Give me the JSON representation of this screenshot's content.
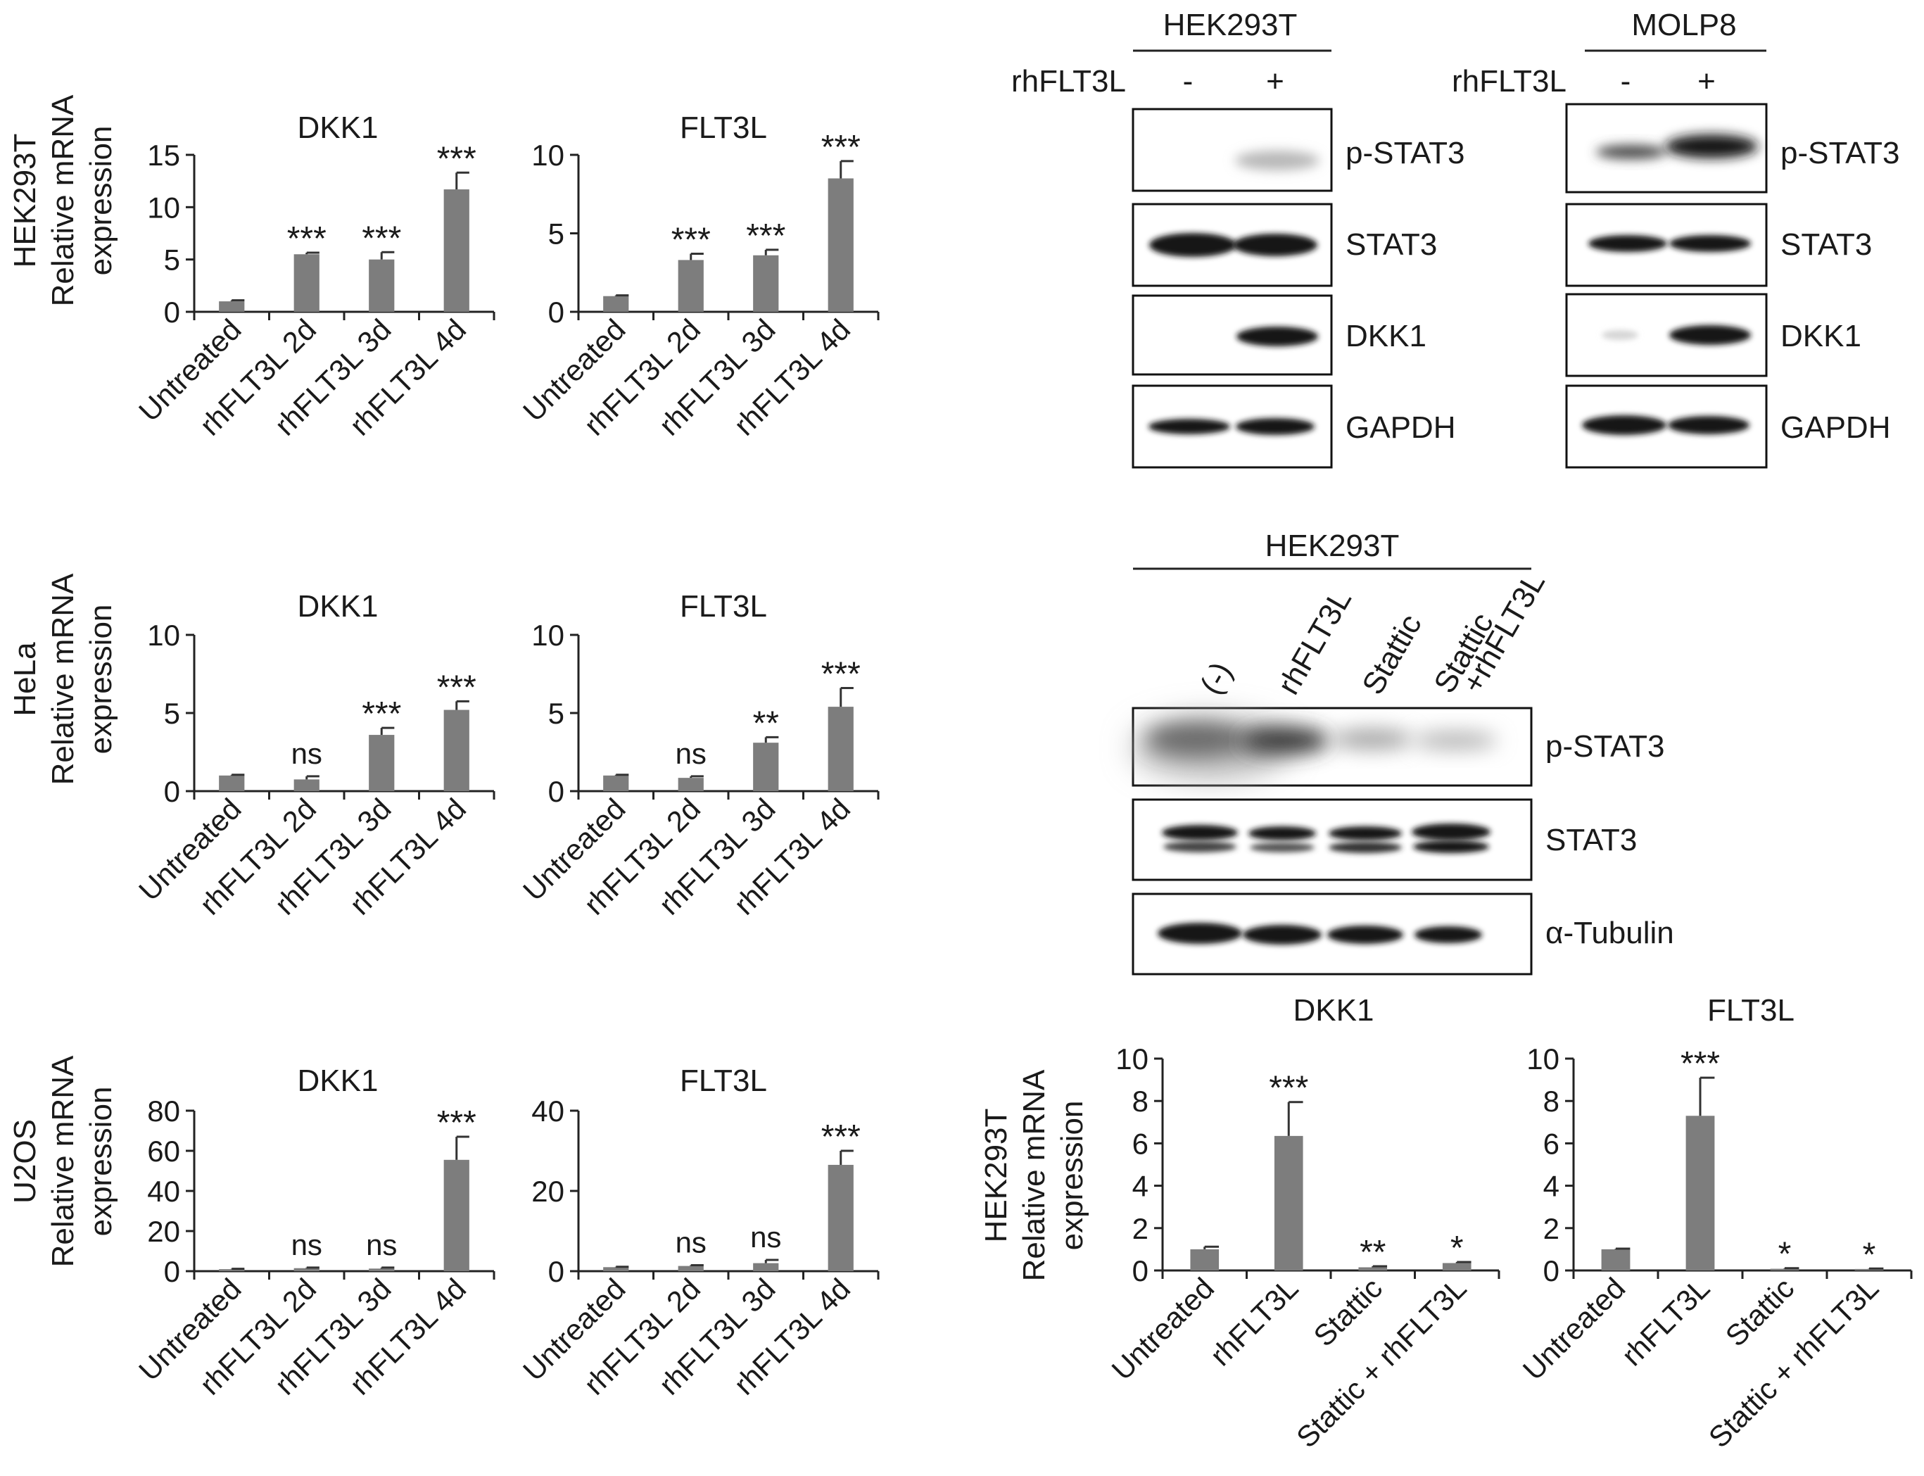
{
  "chart_data": [
    {
      "id": "hek-dkk1",
      "type": "bar",
      "title": "DKK1",
      "ylabel_lines": [
        "HEK293T",
        "Relative mRNA",
        "expression"
      ],
      "categories": [
        "Untreated",
        "rhFLT3L 2d",
        "rhFLT3L 3d",
        "rhFLT3L 4d"
      ],
      "values": [
        1.0,
        5.5,
        5.0,
        11.7
      ],
      "errors": [
        0.1,
        0.15,
        0.7,
        1.6
      ],
      "sig": [
        "",
        "***",
        "***",
        "***"
      ],
      "ylim": [
        0,
        15
      ],
      "yticks": [
        0,
        5,
        10,
        15
      ]
    },
    {
      "id": "hek-flt3l",
      "type": "bar",
      "title": "FLT3L",
      "ylabel_lines": [],
      "categories": [
        "Untreated",
        "rhFLT3L 2d",
        "rhFLT3L 3d",
        "rhFLT3L 4d"
      ],
      "values": [
        1.0,
        3.3,
        3.6,
        8.5
      ],
      "errors": [
        0.05,
        0.4,
        0.35,
        1.1
      ],
      "sig": [
        "",
        "***",
        "***",
        "***"
      ],
      "ylim": [
        0,
        10
      ],
      "yticks": [
        0,
        5,
        10
      ]
    },
    {
      "id": "hela-dkk1",
      "type": "bar",
      "title": "DKK1",
      "ylabel_lines": [
        "HeLa",
        "Relative mRNA",
        "expression"
      ],
      "categories": [
        "Untreated",
        "rhFLT3L 2d",
        "rhFLT3L 3d",
        "rhFLT3L 4d"
      ],
      "values": [
        1.0,
        0.75,
        3.6,
        5.2
      ],
      "errors": [
        0.05,
        0.2,
        0.45,
        0.55
      ],
      "sig": [
        "",
        "ns",
        "***",
        "***"
      ],
      "ylim": [
        0,
        10
      ],
      "yticks": [
        0,
        5,
        10
      ]
    },
    {
      "id": "hela-flt3l",
      "type": "bar",
      "title": "FLT3L",
      "ylabel_lines": [],
      "categories": [
        "Untreated",
        "rhFLT3L 2d",
        "rhFLT3L 3d",
        "rhFLT3L 4d"
      ],
      "values": [
        1.0,
        0.85,
        3.1,
        5.4
      ],
      "errors": [
        0.05,
        0.1,
        0.35,
        1.2
      ],
      "sig": [
        "",
        "ns",
        "**",
        "***"
      ],
      "ylim": [
        0,
        10
      ],
      "yticks": [
        0,
        5,
        10
      ]
    },
    {
      "id": "u2os-dkk1",
      "type": "bar",
      "title": "DKK1",
      "ylabel_lines": [
        "U2OS",
        "Relative mRNA",
        "expression"
      ],
      "categories": [
        "Untreated",
        "rhFLT3L 2d",
        "rhFLT3L 3d",
        "rhFLT3L 4d"
      ],
      "values": [
        1.0,
        1.5,
        1.3,
        55.5
      ],
      "errors": [
        0.2,
        0.3,
        0.5,
        11.5
      ],
      "sig": [
        "",
        "ns",
        "ns",
        "***"
      ],
      "ylim": [
        0,
        80
      ],
      "yticks": [
        0,
        20,
        40,
        60,
        80
      ]
    },
    {
      "id": "u2os-flt3l",
      "type": "bar",
      "title": "FLT3L",
      "ylabel_lines": [],
      "categories": [
        "Untreated",
        "rhFLT3L 2d",
        "rhFLT3L 3d",
        "rhFLT3L 4d"
      ],
      "values": [
        1.0,
        1.3,
        2.0,
        26.5
      ],
      "errors": [
        0.1,
        0.2,
        0.8,
        3.5
      ],
      "sig": [
        "",
        "ns",
        "ns",
        "***"
      ],
      "ylim": [
        0,
        40
      ],
      "yticks": [
        0,
        20,
        40
      ]
    },
    {
      "id": "stattic-dkk1",
      "type": "bar",
      "title": "DKK1",
      "ylabel_lines": [
        "HEK293T",
        "Relative mRNA",
        "expression"
      ],
      "categories": [
        "Untreated",
        "rhFLT3L",
        "Stattic",
        "Stattic + rhFLT3L"
      ],
      "values": [
        1.0,
        6.35,
        0.15,
        0.35
      ],
      "errors": [
        0.12,
        1.6,
        0.05,
        0.05
      ],
      "sig": [
        "",
        "***",
        "**",
        "*"
      ],
      "ylim": [
        0,
        10
      ],
      "yticks": [
        0,
        2,
        4,
        6,
        8,
        10
      ]
    },
    {
      "id": "stattic-flt3l",
      "type": "bar",
      "title": "FLT3L",
      "ylabel_lines": [],
      "categories": [
        "Untreated",
        "rhFLT3L",
        "Stattic",
        "Stattic + rhFLT3L"
      ],
      "values": [
        1.0,
        7.3,
        0.08,
        0.07
      ],
      "errors": [
        0.03,
        1.8,
        0.03,
        0.02
      ],
      "sig": [
        "",
        "***",
        "*",
        "*"
      ],
      "ylim": [
        0,
        10
      ],
      "yticks": [
        0,
        2,
        4,
        6,
        8,
        10
      ]
    }
  ],
  "blots": {
    "hek293t": {
      "header": "HEK293T",
      "treatment_label": "rhFLT3L",
      "lanes": [
        "-",
        "+"
      ],
      "rows": [
        "p-STAT3",
        "STAT3",
        "DKK1",
        "GAPDH"
      ]
    },
    "molp8": {
      "header": "MOLP8",
      "treatment_label": "rhFLT3L",
      "lanes": [
        "-",
        "+"
      ],
      "rows": [
        "p-STAT3",
        "STAT3",
        "DKK1",
        "GAPDH"
      ]
    },
    "stattic": {
      "header": "HEK293T",
      "lanes": [
        "(-)",
        "rhFLT3L",
        "Stattic",
        "Stattic",
        "+rhFLT3L"
      ],
      "rows": [
        "p-STAT3",
        "STAT3",
        "α-Tubulin"
      ]
    }
  }
}
